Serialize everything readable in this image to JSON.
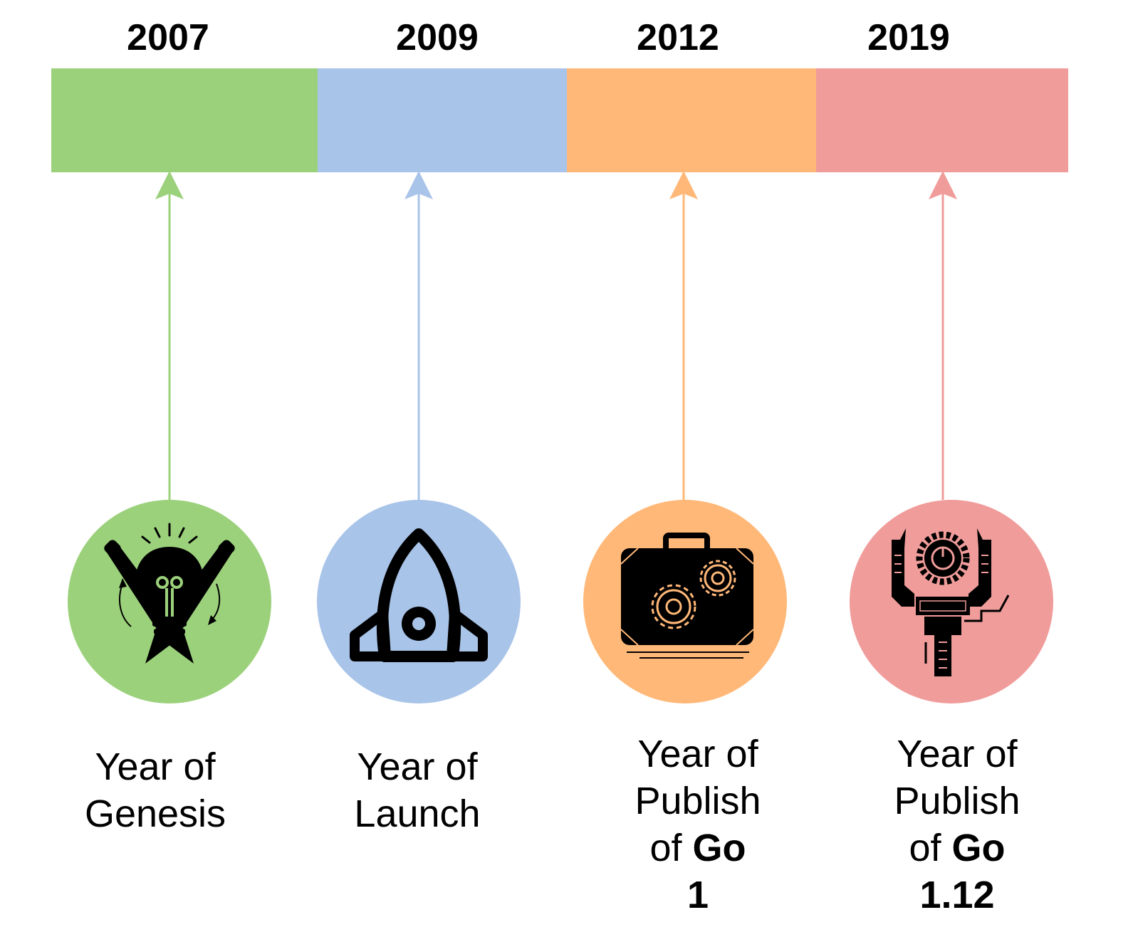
{
  "milestones": [
    {
      "year": "2007",
      "caption_lines": [
        "Year of",
        "Genesis"
      ],
      "bold_tail": "",
      "version": "",
      "color": "#9CD17C",
      "icon": "lightbulb-pencils-icon"
    },
    {
      "year": "2009",
      "caption_lines": [
        "Year of",
        "Launch"
      ],
      "bold_tail": "",
      "version": "",
      "color": "#A9C4E9",
      "icon": "rocket-icon"
    },
    {
      "year": "2012",
      "caption_lines": [
        "Year of",
        "Publish",
        "of"
      ],
      "bold_tail": "Go",
      "version": "1",
      "color": "#FFB878",
      "icon": "toolbox-gears-icon"
    },
    {
      "year": "2019",
      "caption_lines": [
        "Year of",
        "Publish",
        "of"
      ],
      "bold_tail": "Go",
      "version": "1.12",
      "color": "#F09C9A",
      "icon": "robot-arm-gear-icon"
    }
  ]
}
